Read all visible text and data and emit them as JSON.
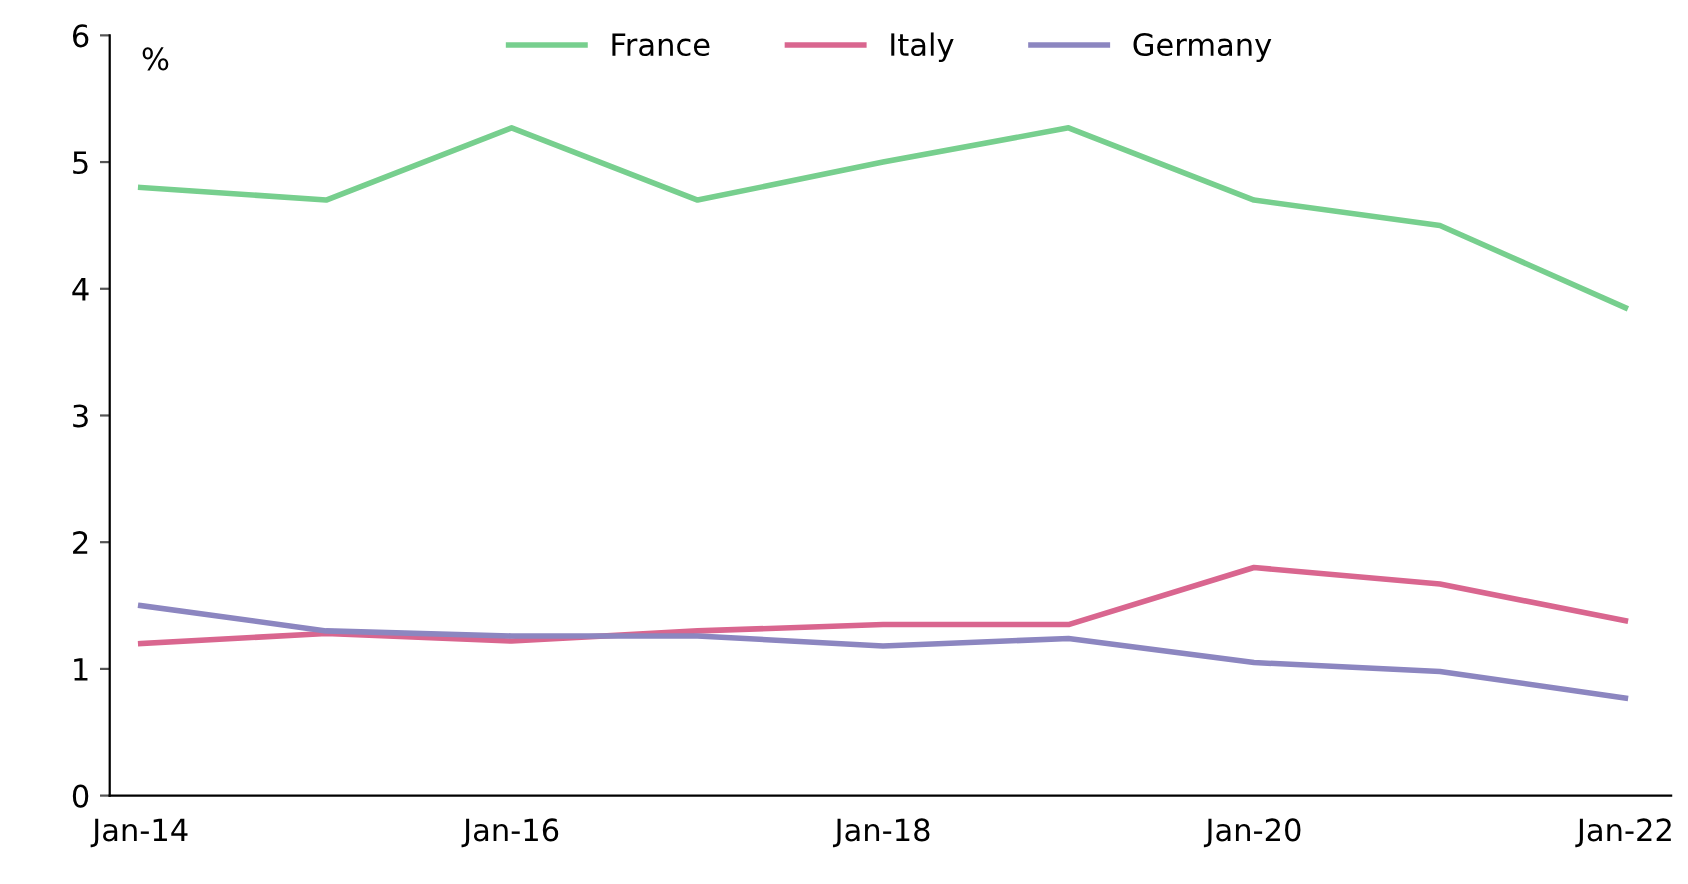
{
  "chart_data": {
    "type": "line",
    "ylabel": "%",
    "x": [
      "2014-01",
      "2015-01",
      "2016-01",
      "2017-01",
      "2018-01",
      "2019-01",
      "2020-01",
      "2021-01",
      "2022-01"
    ],
    "series": [
      {
        "name": "France",
        "color": "#77cf8e",
        "values": [
          4.8,
          4.7,
          5.27,
          4.7,
          5.0,
          5.27,
          4.7,
          4.5,
          3.85
        ]
      },
      {
        "name": "Italy",
        "color": "#d9668f",
        "values": [
          1.2,
          1.28,
          1.22,
          1.3,
          1.35,
          1.35,
          1.8,
          1.67,
          1.38
        ]
      },
      {
        "name": "Germany",
        "color": "#8c86c0",
        "values": [
          1.5,
          1.3,
          1.26,
          1.26,
          1.18,
          1.24,
          1.05,
          0.98,
          0.77
        ]
      }
    ],
    "xlim": [
      "2013-11",
      "2022-04"
    ],
    "xticks": [
      {
        "value": "2014-01",
        "label": "Jan-14"
      },
      {
        "value": "2016-01",
        "label": "Jan-16"
      },
      {
        "value": "2018-01",
        "label": "Jan-18"
      },
      {
        "value": "2020-01",
        "label": "Jan-20"
      },
      {
        "value": "2022-01",
        "label": "Jan-22"
      }
    ],
    "ylim": [
      0,
      6
    ],
    "yticks": [
      0,
      1,
      2,
      3,
      4,
      5,
      6
    ],
    "grid": false,
    "legend": "top",
    "marker": "none",
    "line_style": "solid"
  }
}
